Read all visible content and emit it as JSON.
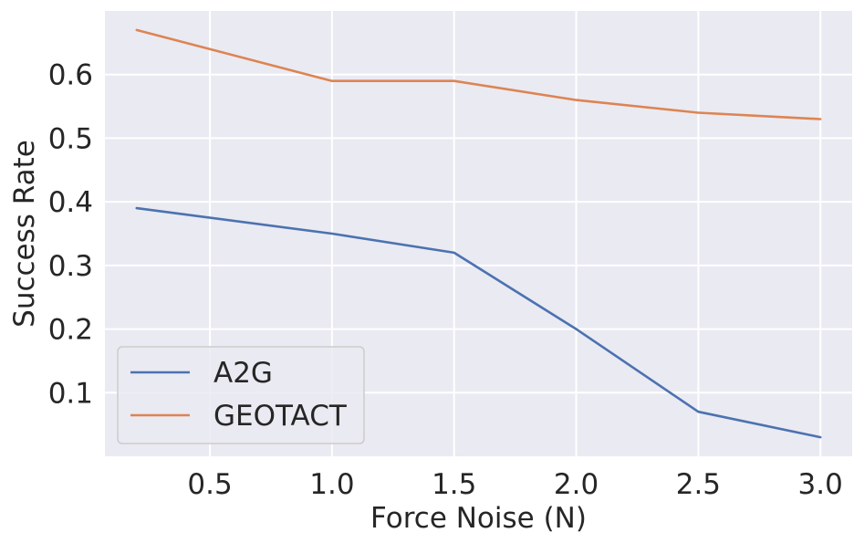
{
  "chart_data": {
    "type": "line",
    "xlabel": "Force Noise (N)",
    "ylabel": "Success Rate",
    "x": [
      0.2,
      1.0,
      1.5,
      2.0,
      2.5,
      3.0
    ],
    "xlim": [
      0.07,
      3.13
    ],
    "ylim": [
      0.0,
      0.7
    ],
    "xticks": [
      0.5,
      1.0,
      1.5,
      2.0,
      2.5,
      3.0
    ],
    "xtick_labels": [
      "0.5",
      "1.0",
      "1.5",
      "2.0",
      "2.5",
      "3.0"
    ],
    "yticks": [
      0.1,
      0.2,
      0.3,
      0.4,
      0.5,
      0.6
    ],
    "ytick_labels": [
      "0.1",
      "0.2",
      "0.3",
      "0.4",
      "0.5",
      "0.6"
    ],
    "grid": true,
    "legend_position": "lower-left",
    "background_color": "#eaeaf2",
    "series": [
      {
        "name": "A2G",
        "color": "#4c72b0",
        "values": [
          0.39,
          0.35,
          0.32,
          0.2,
          0.07,
          0.03
        ]
      },
      {
        "name": "GEOTACT",
        "color": "#dd8452",
        "values": [
          0.67,
          0.59,
          0.59,
          0.56,
          0.54,
          0.53
        ]
      }
    ]
  }
}
